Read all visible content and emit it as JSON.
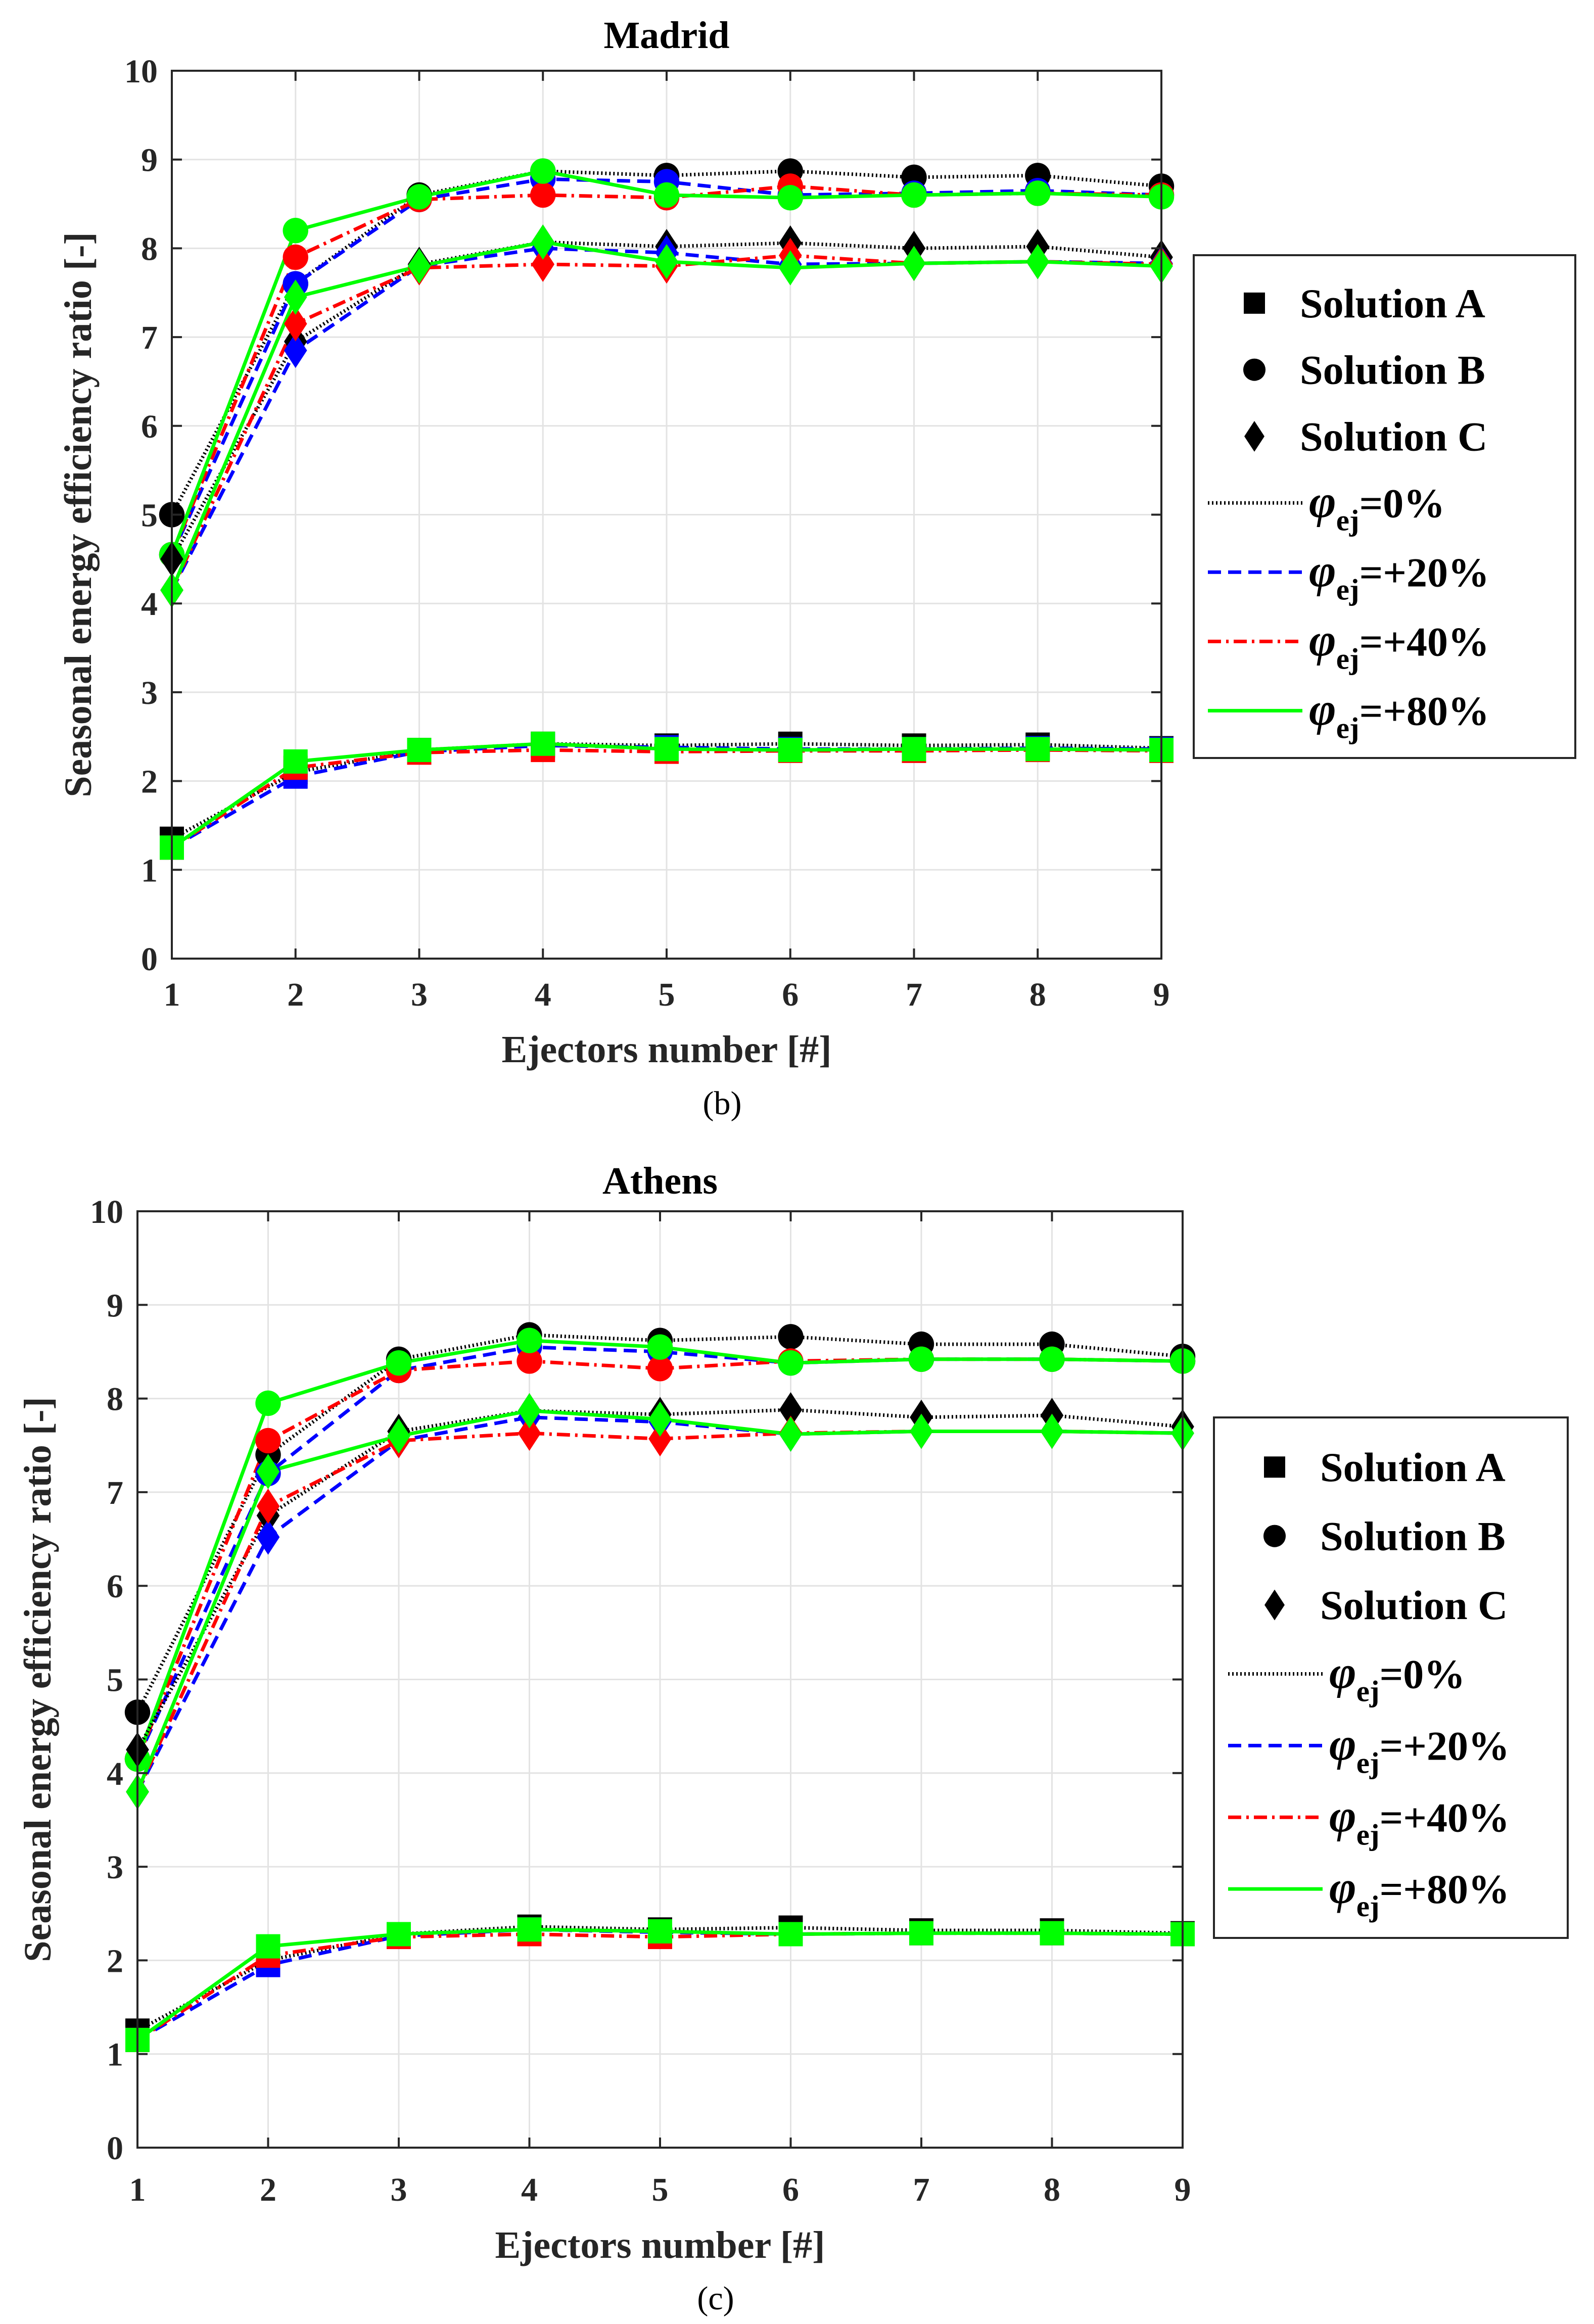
{
  "chart_data": [
    {
      "type": "line",
      "title": "Madrid",
      "caption": "(b)",
      "xlabel": "Ejectors number [#]",
      "ylabel": "Seasonal energy efficiency ratio [-]",
      "x": [
        1,
        2,
        3,
        4,
        5,
        6,
        7,
        8,
        9
      ],
      "xlim": [
        1,
        9
      ],
      "ylim": [
        0,
        10
      ],
      "yticks": [
        "0",
        "1",
        "2",
        "3",
        "4",
        "5",
        "6",
        "7",
        "8",
        "9",
        "10"
      ],
      "xticks": [
        "1",
        "2",
        "3",
        "4",
        "5",
        "6",
        "7",
        "8",
        "9"
      ],
      "grid": true,
      "legend_position": "right",
      "series": [
        {
          "name": "Solution A, φej=0%",
          "solution": "A",
          "phi": "0%",
          "values": [
            1.35,
            2.1,
            2.35,
            2.42,
            2.4,
            2.42,
            2.4,
            2.41,
            2.37
          ]
        },
        {
          "name": "Solution A, φej=+20%",
          "solution": "A",
          "phi": "+20%",
          "values": [
            1.25,
            2.05,
            2.33,
            2.4,
            2.38,
            2.36,
            2.36,
            2.37,
            2.36
          ]
        },
        {
          "name": "Solution A, φej=+40%",
          "solution": "A",
          "phi": "+40%",
          "values": [
            1.25,
            2.15,
            2.32,
            2.35,
            2.33,
            2.34,
            2.34,
            2.35,
            2.34
          ]
        },
        {
          "name": "Solution A, φej=+80%",
          "solution": "A",
          "phi": "+80%",
          "values": [
            1.25,
            2.22,
            2.35,
            2.42,
            2.36,
            2.35,
            2.36,
            2.36,
            2.35
          ]
        },
        {
          "name": "Solution B, φej=0%",
          "solution": "B",
          "phi": "0%",
          "values": [
            5.0,
            7.6,
            8.6,
            8.87,
            8.82,
            8.87,
            8.8,
            8.82,
            8.7
          ]
        },
        {
          "name": "Solution B, φej=+20%",
          "solution": "B",
          "phi": "+20%",
          "values": [
            4.55,
            7.6,
            8.55,
            8.78,
            8.75,
            8.6,
            8.62,
            8.65,
            8.6
          ]
        },
        {
          "name": "Solution B, φej=+40%",
          "solution": "B",
          "phi": "+40%",
          "values": [
            4.55,
            7.9,
            8.55,
            8.6,
            8.57,
            8.7,
            8.6,
            8.62,
            8.6
          ]
        },
        {
          "name": "Solution B, φej=+80%",
          "solution": "B",
          "phi": "+80%",
          "values": [
            4.55,
            8.2,
            8.58,
            8.87,
            8.6,
            8.57,
            8.6,
            8.62,
            8.58
          ]
        },
        {
          "name": "Solution C, φej=0%",
          "solution": "C",
          "phi": "0%",
          "values": [
            4.5,
            6.95,
            7.82,
            8.07,
            8.02,
            8.06,
            8.0,
            8.02,
            7.9
          ]
        },
        {
          "name": "Solution C, φej=+20%",
          "solution": "C",
          "phi": "+20%",
          "values": [
            4.15,
            6.85,
            7.8,
            8.0,
            7.95,
            7.82,
            7.83,
            7.85,
            7.83
          ]
        },
        {
          "name": "Solution C, φej=+40%",
          "solution": "C",
          "phi": "+40%",
          "values": [
            4.15,
            7.15,
            7.78,
            7.82,
            7.8,
            7.92,
            7.83,
            7.85,
            7.82
          ]
        },
        {
          "name": "Solution C, φej=+80%",
          "solution": "C",
          "phi": "+80%",
          "values": [
            4.15,
            7.45,
            7.8,
            8.07,
            7.85,
            7.78,
            7.83,
            7.85,
            7.8
          ]
        }
      ],
      "legend": {
        "markers": [
          "Solution A",
          "Solution B",
          "Solution C"
        ],
        "lines": [
          {
            "symbol": "φ",
            "subscript": "ej",
            "value": "=0%"
          },
          {
            "symbol": "φ",
            "subscript": "ej",
            "value": "=+20%"
          },
          {
            "symbol": "φ",
            "subscript": "ej",
            "value": "=+40%"
          },
          {
            "symbol": "φ",
            "subscript": "ej",
            "value": "=+80%"
          }
        ]
      }
    },
    {
      "type": "line",
      "title": "Athens",
      "caption": "(c)",
      "xlabel": "Ejectors number [#]",
      "ylabel": "Seasonal energy efficiency ratio [-]",
      "x": [
        1,
        2,
        3,
        4,
        5,
        6,
        7,
        8,
        9
      ],
      "xlim": [
        1,
        9
      ],
      "ylim": [
        0,
        10
      ],
      "yticks": [
        "0",
        "1",
        "2",
        "3",
        "4",
        "5",
        "6",
        "7",
        "8",
        "9",
        "10"
      ],
      "xticks": [
        "1",
        "2",
        "3",
        "4",
        "5",
        "6",
        "7",
        "8",
        "9"
      ],
      "grid": true,
      "legend_position": "right",
      "series": [
        {
          "name": "Solution A, φej=0%",
          "solution": "A",
          "phi": "0%",
          "values": [
            1.25,
            2.0,
            2.28,
            2.36,
            2.33,
            2.35,
            2.32,
            2.32,
            2.29
          ]
        },
        {
          "name": "Solution A, φej=+20%",
          "solution": "A",
          "phi": "+20%",
          "values": [
            1.15,
            1.95,
            2.26,
            2.33,
            2.3,
            2.28,
            2.29,
            2.29,
            2.28
          ]
        },
        {
          "name": "Solution A, φej=+40%",
          "solution": "A",
          "phi": "+40%",
          "values": [
            1.15,
            2.05,
            2.25,
            2.28,
            2.25,
            2.28,
            2.29,
            2.29,
            2.28
          ]
        },
        {
          "name": "Solution A, φej=+80%",
          "solution": "A",
          "phi": "+80%",
          "values": [
            1.15,
            2.15,
            2.28,
            2.33,
            2.31,
            2.28,
            2.29,
            2.29,
            2.28
          ]
        },
        {
          "name": "Solution B, φej=0%",
          "solution": "B",
          "phi": "0%",
          "values": [
            4.65,
            7.4,
            8.42,
            8.68,
            8.62,
            8.66,
            8.58,
            8.58,
            8.45
          ]
        },
        {
          "name": "Solution B, φej=+20%",
          "solution": "B",
          "phi": "+20%",
          "values": [
            4.15,
            7.2,
            8.3,
            8.55,
            8.5,
            8.38,
            8.42,
            8.42,
            8.4
          ]
        },
        {
          "name": "Solution B, φej=+40%",
          "solution": "B",
          "phi": "+40%",
          "values": [
            4.15,
            7.55,
            8.3,
            8.4,
            8.32,
            8.4,
            8.42,
            8.42,
            8.4
          ]
        },
        {
          "name": "Solution B, φej=+80%",
          "solution": "B",
          "phi": "+80%",
          "values": [
            4.15,
            7.95,
            8.38,
            8.62,
            8.55,
            8.38,
            8.42,
            8.42,
            8.4
          ]
        },
        {
          "name": "Solution C, φej=0%",
          "solution": "C",
          "phi": "0%",
          "values": [
            4.25,
            6.75,
            7.65,
            7.87,
            7.83,
            7.88,
            7.8,
            7.82,
            7.7
          ]
        },
        {
          "name": "Solution C, φej=+20%",
          "solution": "C",
          "phi": "+20%",
          "values": [
            3.8,
            6.52,
            7.55,
            7.8,
            7.75,
            7.62,
            7.65,
            7.65,
            7.63
          ]
        },
        {
          "name": "Solution C, φej=+40%",
          "solution": "C",
          "phi": "+40%",
          "values": [
            3.8,
            6.85,
            7.55,
            7.63,
            7.57,
            7.63,
            7.65,
            7.65,
            7.63
          ]
        },
        {
          "name": "Solution C, φej=+80%",
          "solution": "C",
          "phi": "+80%",
          "values": [
            3.8,
            7.22,
            7.6,
            7.87,
            7.78,
            7.62,
            7.65,
            7.65,
            7.63
          ]
        }
      ],
      "legend": {
        "markers": [
          "Solution A",
          "Solution B",
          "Solution C"
        ],
        "lines": [
          {
            "symbol": "φ",
            "subscript": "ej",
            "value": "=0%"
          },
          {
            "symbol": "φ",
            "subscript": "ej",
            "value": "=+20%"
          },
          {
            "symbol": "φ",
            "subscript": "ej",
            "value": "=+40%"
          },
          {
            "symbol": "φ",
            "subscript": "ej",
            "value": "=+80%"
          }
        ]
      }
    }
  ],
  "styles": {
    "phi_colors": {
      "0%": "#000000",
      "+20%": "#0000ff",
      "+40%": "#ff0000",
      "+80%": "#00ff00"
    },
    "phi_dash": {
      "0%": "dotted",
      "+20%": "dashed",
      "+40%": "dashdot",
      "+80%": "solid"
    },
    "grid_color": "#e3e3e3",
    "axis_color": "#262626"
  }
}
